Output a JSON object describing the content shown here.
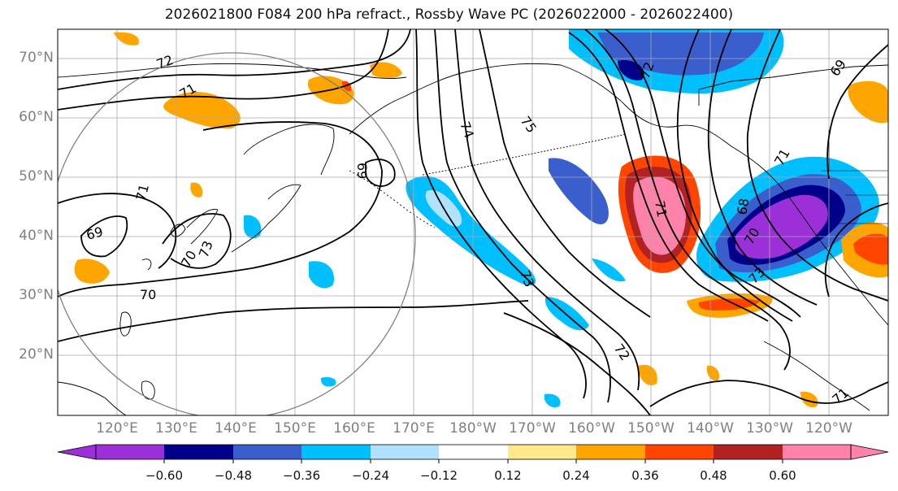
{
  "title": "2026021800 F084 200 hPa refract., Rossby Wave PC (2026022000 - 2026022400)",
  "lat_labels": [
    "70°N",
    "60°N",
    "50°N",
    "40°N",
    "30°N",
    "20°N"
  ],
  "lon_labels": [
    "120°E",
    "130°E",
    "140°E",
    "150°E",
    "160°E",
    "170°E",
    "180°W",
    "170°W",
    "160°W",
    "150°W",
    "140°W",
    "130°W",
    "120°W"
  ],
  "contour_labels": [
    "72",
    "71",
    "70",
    "69",
    "69",
    "71",
    "73",
    "70",
    "74",
    "75",
    "72",
    "71",
    "73",
    "72",
    "69",
    "71",
    "70",
    "68",
    "73",
    "71"
  ],
  "colorbar": {
    "tick_labels": [
      "−0.60",
      "−0.48",
      "−0.36",
      "−0.24",
      "−0.12",
      "0.12",
      "0.24",
      "0.36",
      "0.48",
      "0.60"
    ],
    "bin_colors": [
      "#9b30d9",
      "#00008b",
      "#3a5fcd",
      "#00bfff",
      "#b0e2ff",
      "#ffffff",
      "#ffe98a",
      "#ffa500",
      "#ff4500",
      "#b22222",
      "#ff82ab"
    ]
  }
}
